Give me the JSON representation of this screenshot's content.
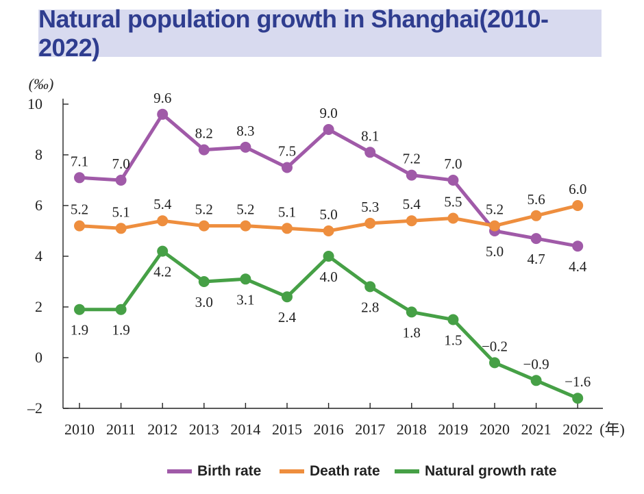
{
  "chart_data": {
    "type": "line",
    "title": "Natural population growth in Shanghai(2010-2022)",
    "ylabel": "(‰)",
    "xlabel_suffix": "(年)",
    "ylim": [
      -2,
      10
    ],
    "yticks": [
      "10",
      "8",
      "6",
      "4",
      "2",
      "0",
      "–2"
    ],
    "ytick_values": [
      10,
      8,
      6,
      4,
      2,
      0,
      -2
    ],
    "categories": [
      "2010",
      "2011",
      "2012",
      "2013",
      "2014",
      "2015",
      "2016",
      "2017",
      "2018",
      "2019",
      "2020",
      "2021",
      "2022"
    ],
    "legend_position": "bottom",
    "series": [
      {
        "name": "Birth rate",
        "color": "#a05aa8",
        "values": [
          7.1,
          7.0,
          9.6,
          8.2,
          8.3,
          7.5,
          9.0,
          8.1,
          7.2,
          7.0,
          5.0,
          4.7,
          4.4
        ],
        "labels": [
          "7.1",
          "7.0",
          "9.6",
          "8.2",
          "8.3",
          "7.5",
          "9.0",
          "8.1",
          "7.2",
          "7.0",
          "5.0",
          "4.7",
          "4.4"
        ]
      },
      {
        "name": "Death rate",
        "color": "#ee8e3e",
        "values": [
          5.2,
          5.1,
          5.4,
          5.2,
          5.2,
          5.1,
          5.0,
          5.3,
          5.4,
          5.5,
          5.2,
          5.6,
          6.0
        ],
        "labels": [
          "5.2",
          "5.1",
          "5.4",
          "5.2",
          "5.2",
          "5.1",
          "5.0",
          "5.3",
          "5.4",
          "5.5",
          "5.2",
          "5.6",
          "6.0"
        ]
      },
      {
        "name": "Natural growth rate",
        "color": "#46a046",
        "values": [
          1.9,
          1.9,
          4.2,
          3.0,
          3.1,
          2.4,
          4.0,
          2.8,
          1.8,
          1.5,
          -0.2,
          -0.9,
          -1.6
        ],
        "labels": [
          "1.9",
          "1.9",
          "4.2",
          "3.0",
          "3.1",
          "2.4",
          "4.0",
          "2.8",
          "1.8",
          "1.5",
          "−0.2",
          "−0.9",
          "−1.6"
        ]
      }
    ]
  }
}
